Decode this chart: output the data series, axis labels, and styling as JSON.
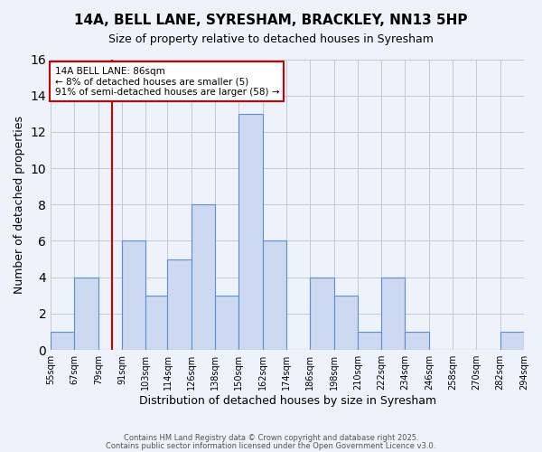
{
  "title": "14A, BELL LANE, SYRESHAM, BRACKLEY, NN13 5HP",
  "subtitle": "Size of property relative to detached houses in Syresham",
  "xlabel": "Distribution of detached houses by size in Syresham",
  "ylabel": "Number of detached properties",
  "bar_color": "#ccd9f0",
  "bar_edge_color": "#5b8fd4",
  "bg_color": "#eef2fb",
  "grid_color": "#c0c8da",
  "bin_edges": [
    55,
    67,
    79,
    91,
    103,
    114,
    126,
    138,
    150,
    162,
    174,
    186,
    198,
    210,
    222,
    234,
    246,
    258,
    270,
    282,
    294
  ],
  "bin_labels": [
    "55sqm",
    "67sqm",
    "79sqm",
    "91sqm",
    "103sqm",
    "114sqm",
    "126sqm",
    "138sqm",
    "150sqm",
    "162sqm",
    "174sqm",
    "186sqm",
    "198sqm",
    "210sqm",
    "222sqm",
    "234sqm",
    "246sqm",
    "258sqm",
    "270sqm",
    "282sqm",
    "294sqm"
  ],
  "counts": [
    1,
    4,
    0,
    6,
    3,
    5,
    8,
    3,
    13,
    6,
    0,
    4,
    3,
    1,
    4,
    1,
    0,
    0,
    0,
    1
  ],
  "red_line_x": 86,
  "annotation_title": "14A BELL LANE: 86sqm",
  "annotation_line1": "← 8% of detached houses are smaller (5)",
  "annotation_line2": "91% of semi-detached houses are larger (58) →",
  "annotation_box_color": "#ffffff",
  "annotation_box_edge": "#cc0000",
  "red_line_color": "#cc0000",
  "ylim": [
    0,
    16
  ],
  "yticks": [
    0,
    2,
    4,
    6,
    8,
    10,
    12,
    14,
    16
  ],
  "footer1": "Contains HM Land Registry data © Crown copyright and database right 2025.",
  "footer2": "Contains public sector information licensed under the Open Government Licence v3.0."
}
